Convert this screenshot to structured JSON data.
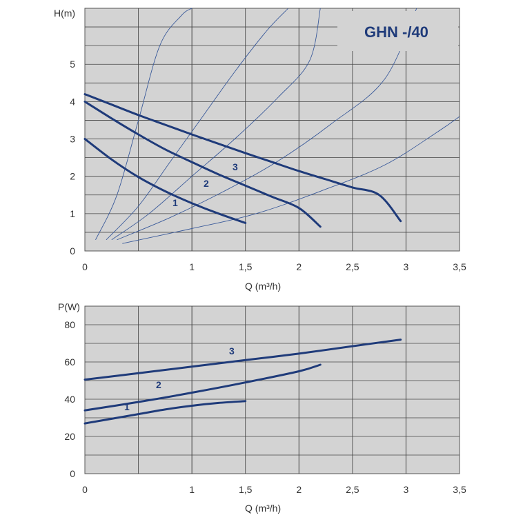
{
  "chart_data": [
    {
      "type": "line",
      "title": "GHN -/40",
      "xlabel": "Q (m³/h)",
      "ylabel": "H(m)",
      "xlim": [
        0,
        3.5
      ],
      "ylim": [
        0,
        6.5
      ],
      "x_ticks": [
        "0",
        "1",
        "1,5",
        "2",
        "2,5",
        "3",
        "3,5"
      ],
      "y_ticks": [
        "0",
        "1",
        "2",
        "3",
        "4",
        "5"
      ],
      "grid": true,
      "series": [
        {
          "name": "1",
          "x": [
            0,
            0.25,
            0.5,
            0.75,
            1.0,
            1.25,
            1.5
          ],
          "y": [
            3.0,
            2.45,
            1.98,
            1.6,
            1.28,
            1.0,
            0.75
          ]
        },
        {
          "name": "2",
          "x": [
            0,
            0.25,
            0.5,
            0.75,
            1.0,
            1.25,
            1.5,
            1.75,
            2.0,
            2.2
          ],
          "y": [
            4.0,
            3.55,
            3.12,
            2.72,
            2.38,
            2.05,
            1.75,
            1.45,
            1.15,
            0.65
          ]
        },
        {
          "name": "3",
          "x": [
            0,
            0.25,
            0.5,
            0.75,
            1.0,
            1.25,
            1.5,
            1.75,
            2.0,
            2.25,
            2.5,
            2.75,
            2.95
          ],
          "y": [
            4.2,
            3.92,
            3.64,
            3.38,
            3.12,
            2.87,
            2.62,
            2.38,
            2.14,
            1.92,
            1.7,
            1.5,
            0.8
          ]
        }
      ],
      "system_curves": [
        {
          "x": [
            0.1,
            0.3,
            0.5,
            0.7,
            0.9,
            1.0
          ],
          "y": [
            0.3,
            1.5,
            3.5,
            5.5,
            6.3,
            6.5
          ]
        },
        {
          "x": [
            0.2,
            0.5,
            0.8,
            1.1,
            1.4,
            1.7,
            1.9
          ],
          "y": [
            0.3,
            1.2,
            2.4,
            3.6,
            4.8,
            5.9,
            6.5
          ]
        },
        {
          "x": [
            0.25,
            0.6,
            1.0,
            1.4,
            1.8,
            2.1,
            2.2
          ],
          "y": [
            0.3,
            1.0,
            2.0,
            3.0,
            4.1,
            5.1,
            6.5
          ]
        },
        {
          "x": [
            0.3,
            0.8,
            1.3,
            1.8,
            2.3,
            2.8,
            3.1
          ],
          "y": [
            0.3,
            0.9,
            1.6,
            2.4,
            3.4,
            4.6,
            6.5
          ]
        },
        {
          "x": [
            0.35,
            1.0,
            1.6,
            2.2,
            2.8,
            3.3,
            3.5
          ],
          "y": [
            0.2,
            0.6,
            1.0,
            1.6,
            2.3,
            3.2,
            3.6
          ]
        }
      ],
      "curve_labels": [
        "1",
        "2",
        "3"
      ]
    },
    {
      "type": "line",
      "xlabel": "Q (m³/h)",
      "ylabel": "P(W)",
      "xlim": [
        0,
        3.5
      ],
      "ylim": [
        0,
        90
      ],
      "x_ticks": [
        "0",
        "1",
        "1,5",
        "2",
        "2,5",
        "3",
        "3,5"
      ],
      "y_ticks": [
        "0",
        "20",
        "40",
        "60",
        "80"
      ],
      "grid": true,
      "series": [
        {
          "name": "1",
          "x": [
            0,
            0.25,
            0.5,
            0.75,
            1.0,
            1.25,
            1.5
          ],
          "y": [
            27,
            29.5,
            32,
            34.5,
            36.5,
            38,
            39
          ]
        },
        {
          "name": "2",
          "x": [
            0,
            0.5,
            1.0,
            1.5,
            2.0,
            2.2
          ],
          "y": [
            34,
            38.5,
            43.5,
            49,
            55,
            58.5
          ]
        },
        {
          "name": "3",
          "x": [
            0,
            0.5,
            1.0,
            1.5,
            2.0,
            2.5,
            2.95
          ],
          "y": [
            50.5,
            54,
            57.5,
            61,
            64.5,
            68.5,
            72
          ]
        }
      ],
      "curve_labels": [
        "1",
        "2",
        "3"
      ]
    }
  ]
}
